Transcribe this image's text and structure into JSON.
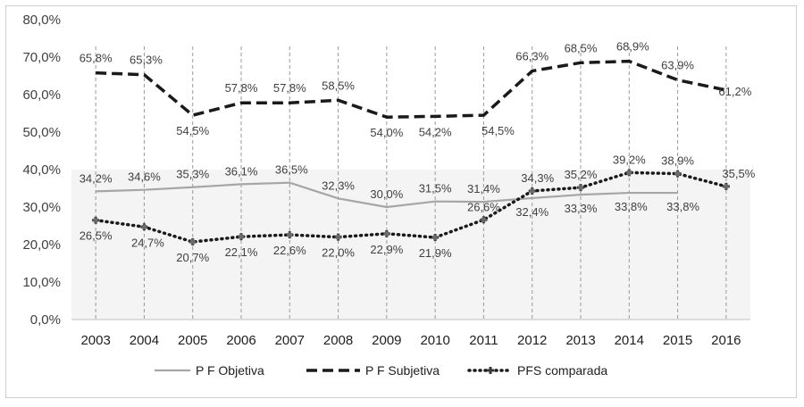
{
  "chart_data": {
    "type": "line",
    "title": "",
    "xlabel": "",
    "ylabel": "",
    "x": [
      "2003",
      "2004",
      "2005",
      "2006",
      "2007",
      "2008",
      "2009",
      "2010",
      "2011",
      "2012",
      "2013",
      "2014",
      "2015",
      "2016"
    ],
    "ylim": [
      0,
      80
    ],
    "yticks": [
      0,
      10,
      20,
      30,
      40,
      50,
      60,
      70,
      80
    ],
    "ytick_labels": [
      "0,0%",
      "10,0%",
      "20,0%",
      "30,0%",
      "40,0%",
      "50,0%",
      "60,0%",
      "70,0%",
      "80,0%"
    ],
    "grid": "vertical dashed",
    "legend_position": "bottom",
    "series": [
      {
        "name": "P F Objetiva",
        "style": "solid",
        "color": "#a6a6a6",
        "values": [
          34.2,
          34.6,
          35.3,
          36.1,
          36.5,
          32.3,
          30.0,
          31.5,
          31.4,
          32.4,
          33.3,
          33.8,
          33.8,
          null
        ],
        "labels": [
          "34,2%",
          "34,6%",
          "35,3%",
          "36,1%",
          "36,5%",
          "32,3%",
          "30,0%",
          "31,5%",
          "31,4%",
          "32,4%",
          "33,3%",
          "33,8%",
          "33,8%",
          ""
        ]
      },
      {
        "name": "P F Subjetiva",
        "style": "dashed",
        "color": "#1a1a1a",
        "values": [
          65.8,
          65.3,
          54.5,
          57.8,
          57.8,
          58.5,
          54.0,
          54.2,
          54.5,
          66.3,
          68.5,
          68.9,
          63.9,
          61.2
        ],
        "labels": [
          "65,8%",
          "65,3%",
          "54,5%",
          "57,8%",
          "57,8%",
          "58,5%",
          "54,0%",
          "54,2%",
          "54,5%",
          "66,3%",
          "68,5%",
          "68,9%",
          "63,9%",
          "61,2%"
        ]
      },
      {
        "name": "PFS comparada",
        "style": "dotted",
        "color": "#1a1a1a",
        "values": [
          26.5,
          24.7,
          20.7,
          22.1,
          22.6,
          22.0,
          22.9,
          21.9,
          26.6,
          34.3,
          35.2,
          39.2,
          38.9,
          35.5
        ],
        "labels": [
          "26,5%",
          "24,7%",
          "20,7%",
          "22,1%",
          "22,6%",
          "22,0%",
          "22,9%",
          "21,9%",
          "26,6%",
          "34,3%",
          "35,2%",
          "39,2%",
          "38,9%",
          "35,5%"
        ]
      }
    ]
  }
}
